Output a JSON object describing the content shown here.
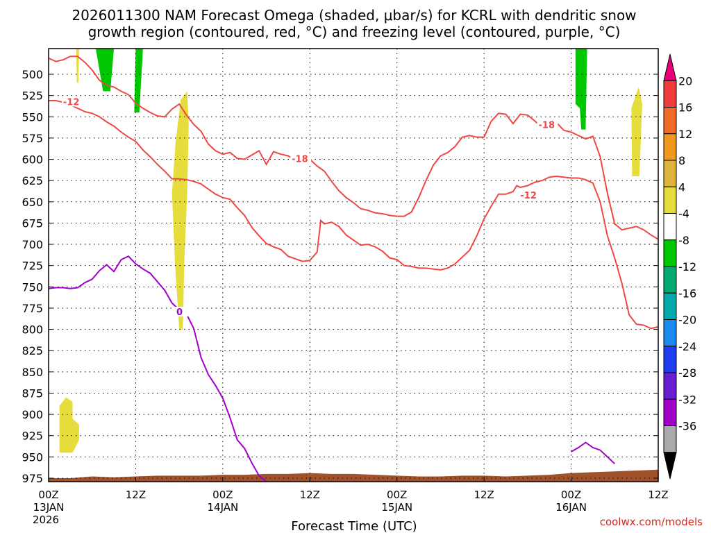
{
  "title": {
    "line1": "2026011300 NAM Forecast Omega (shaded, μbar/s) for KCRL with dendritic snow",
    "line2": "growth region (contoured, red, °C) and freezing level (contoured, purple, °C)"
  },
  "credit": "coolwx.com/models",
  "chart_data": {
    "type": "contour",
    "title": "2026011300 NAM Forecast Omega (shaded, μbar/s) for KCRL with dendritic snow growth region (contoured, red, °C) and freezing level (contoured, purple, °C)",
    "xlabel": "Forecast Time (UTC)",
    "ylabel": "",
    "x_range_hours": [
      0,
      84
    ],
    "y_range_mb": [
      475,
      990
    ],
    "y_ticks": [
      500,
      525,
      550,
      575,
      600,
      625,
      650,
      675,
      700,
      725,
      750,
      775,
      800,
      825,
      850,
      875,
      900,
      925,
      950,
      975
    ],
    "x_ticks": [
      {
        "h": 0,
        "label": "00Z",
        "sub": "13JAN",
        "sub2": "2026"
      },
      {
        "h": 12,
        "label": "12Z",
        "sub": "",
        "sub2": ""
      },
      {
        "h": 24,
        "label": "00Z",
        "sub": "14JAN",
        "sub2": ""
      },
      {
        "h": 36,
        "label": "12Z",
        "sub": "",
        "sub2": ""
      },
      {
        "h": 48,
        "label": "00Z",
        "sub": "15JAN",
        "sub2": ""
      },
      {
        "h": 60,
        "label": "12Z",
        "sub": "",
        "sub2": ""
      },
      {
        "h": 72,
        "label": "00Z",
        "sub": "16JAN",
        "sub2": ""
      },
      {
        "h": 84,
        "label": "12Z",
        "sub": "",
        "sub2": ""
      }
    ],
    "colorbar": {
      "labels": [
        "20",
        "16",
        "12",
        "8",
        "4",
        "-4",
        "-8",
        "-12",
        "-16",
        "-20",
        "-24",
        "-28",
        "-32",
        "-36"
      ],
      "colors": [
        "#e8007a",
        "#f03c3c",
        "#f06a28",
        "#f0981e",
        "#e0b43c",
        "#e6dc3c",
        "#ffffff",
        "#00c800",
        "#00aa70",
        "#00aaaa",
        "#1a8cf0",
        "#1e3cf0",
        "#6a1ed2",
        "#a000c8",
        "#aaaaaa",
        "#000000"
      ]
    },
    "contours": [
      {
        "label": "-12",
        "color": "#f04646",
        "points": [
          [
            0,
            531
          ],
          [
            1,
            531
          ],
          [
            2,
            533
          ],
          [
            3,
            536
          ],
          [
            4,
            540
          ],
          [
            5,
            544
          ],
          [
            6,
            546
          ],
          [
            7,
            550
          ],
          [
            8,
            556
          ],
          [
            9,
            561
          ],
          [
            10,
            568
          ],
          [
            11,
            574
          ],
          [
            12,
            579
          ],
          [
            13,
            589
          ],
          [
            14,
            597
          ],
          [
            15,
            606
          ],
          [
            16,
            614
          ],
          [
            17,
            623
          ],
          [
            18,
            623
          ],
          [
            19,
            624
          ],
          [
            20,
            626
          ],
          [
            21,
            629
          ],
          [
            22,
            635
          ],
          [
            23,
            641
          ],
          [
            24,
            645
          ],
          [
            25,
            647
          ],
          [
            26,
            657
          ],
          [
            27,
            666
          ],
          [
            28,
            680
          ],
          [
            29,
            690
          ],
          [
            30,
            699
          ],
          [
            31,
            703
          ],
          [
            32,
            706
          ],
          [
            33,
            714
          ],
          [
            34,
            717
          ],
          [
            35,
            720
          ],
          [
            36,
            719
          ],
          [
            37,
            709
          ],
          [
            37.5,
            672
          ],
          [
            38,
            676
          ],
          [
            39,
            674
          ],
          [
            40,
            679
          ],
          [
            41,
            689
          ],
          [
            42,
            695
          ],
          [
            43,
            701
          ],
          [
            44,
            700
          ],
          [
            45,
            703
          ],
          [
            46,
            708
          ],
          [
            47,
            716
          ],
          [
            48,
            718
          ],
          [
            49,
            725
          ],
          [
            50,
            726
          ],
          [
            51,
            728
          ],
          [
            52,
            728
          ],
          [
            53,
            729
          ],
          [
            54,
            730
          ],
          [
            55,
            728
          ],
          [
            56,
            723
          ],
          [
            57,
            715
          ],
          [
            58,
            707
          ],
          [
            59,
            690
          ],
          [
            60,
            670
          ],
          [
            61,
            655
          ],
          [
            62,
            641
          ],
          [
            63,
            641
          ],
          [
            64,
            638
          ],
          [
            64.5,
            631
          ],
          [
            65,
            633
          ],
          [
            66,
            631
          ],
          [
            67,
            627
          ],
          [
            68,
            625
          ],
          [
            69,
            621
          ],
          [
            70,
            620
          ],
          [
            71,
            621
          ],
          [
            72,
            622
          ],
          [
            73,
            622
          ],
          [
            74,
            624
          ],
          [
            75,
            628
          ],
          [
            76,
            650
          ],
          [
            77,
            690
          ],
          [
            78,
            716
          ],
          [
            79,
            746
          ],
          [
            80,
            783
          ],
          [
            81,
            794
          ],
          [
            82,
            795
          ],
          [
            83,
            799
          ],
          [
            84,
            797
          ]
        ]
      },
      {
        "label": "-18",
        "color": "#f04646",
        "points": [
          [
            0,
            481
          ],
          [
            1,
            485
          ],
          [
            2,
            483
          ],
          [
            3,
            479
          ],
          [
            4,
            479
          ],
          [
            5,
            486
          ],
          [
            6,
            495
          ],
          [
            7,
            507
          ],
          [
            8,
            513
          ],
          [
            9,
            515
          ],
          [
            10,
            520
          ],
          [
            11,
            524
          ],
          [
            12,
            534
          ],
          [
            13,
            540
          ],
          [
            14,
            545
          ],
          [
            15,
            549
          ],
          [
            16,
            550
          ],
          [
            17,
            541
          ],
          [
            18,
            535
          ],
          [
            19,
            548
          ],
          [
            20,
            559
          ],
          [
            21,
            567
          ],
          [
            22,
            582
          ],
          [
            23,
            590
          ],
          [
            24,
            594
          ],
          [
            25,
            592
          ],
          [
            26,
            599
          ],
          [
            27,
            600
          ],
          [
            28,
            595
          ],
          [
            29,
            590
          ],
          [
            30,
            606
          ],
          [
            31,
            591
          ],
          [
            32,
            594
          ],
          [
            33,
            596
          ],
          [
            34,
            601
          ],
          [
            35,
            601
          ],
          [
            36,
            600
          ],
          [
            37,
            608
          ],
          [
            38,
            614
          ],
          [
            39,
            626
          ],
          [
            40,
            637
          ],
          [
            41,
            645
          ],
          [
            42,
            651
          ],
          [
            43,
            658
          ],
          [
            44,
            660
          ],
          [
            45,
            663
          ],
          [
            46,
            664
          ],
          [
            47,
            666
          ],
          [
            48,
            667
          ],
          [
            49,
            667
          ],
          [
            50,
            662
          ],
          [
            51,
            645
          ],
          [
            52,
            625
          ],
          [
            53,
            607
          ],
          [
            54,
            596
          ],
          [
            55,
            592
          ],
          [
            56,
            585
          ],
          [
            57,
            574
          ],
          [
            58,
            572
          ],
          [
            59,
            574
          ],
          [
            60,
            574
          ],
          [
            61,
            555
          ],
          [
            62,
            546
          ],
          [
            63,
            547
          ],
          [
            64,
            558
          ],
          [
            65,
            547
          ],
          [
            66,
            548
          ],
          [
            67,
            555
          ],
          [
            68,
            563
          ],
          [
            69,
            564
          ],
          [
            70,
            557
          ],
          [
            71,
            566
          ],
          [
            72,
            568
          ],
          [
            73,
            572
          ],
          [
            74,
            576
          ],
          [
            75,
            573
          ],
          [
            76,
            597
          ],
          [
            77,
            640
          ],
          [
            78,
            676
          ],
          [
            79,
            683
          ],
          [
            80,
            681
          ],
          [
            81,
            679
          ],
          [
            82,
            683
          ],
          [
            83,
            689
          ],
          [
            84,
            694
          ]
        ]
      },
      {
        "label": "0",
        "color": "#a000c8",
        "points": [
          [
            0,
            752
          ],
          [
            1,
            751
          ],
          [
            2,
            751
          ],
          [
            3,
            752
          ],
          [
            4,
            751
          ],
          [
            5,
            745
          ],
          [
            6,
            741
          ],
          [
            7,
            731
          ],
          [
            8,
            724
          ],
          [
            9,
            732
          ],
          [
            10,
            718
          ],
          [
            11,
            714
          ],
          [
            12,
            723
          ],
          [
            13,
            729
          ],
          [
            14,
            734
          ],
          [
            15,
            744
          ],
          [
            16,
            754
          ],
          [
            17,
            769
          ],
          [
            18,
            777
          ],
          [
            19,
            782
          ],
          [
            20,
            799
          ],
          [
            21,
            833
          ],
          [
            22,
            853
          ],
          [
            23,
            866
          ],
          [
            24,
            881
          ],
          [
            25,
            904
          ],
          [
            26,
            930
          ],
          [
            27,
            940
          ],
          [
            28,
            957
          ],
          [
            29,
            972
          ],
          [
            30,
            989
          ]
        ]
      },
      {
        "label": "",
        "color": "#a000c8",
        "points": [
          [
            72,
            944
          ],
          [
            73,
            939
          ],
          [
            74,
            933
          ],
          [
            75,
            939
          ],
          [
            76,
            942
          ],
          [
            77,
            950
          ],
          [
            78,
            958
          ]
        ]
      }
    ],
    "shaded_regions": [
      {
        "value": -4,
        "color": "#00c800",
        "points": [
          [
            6.5,
            470
          ],
          [
            9,
            470
          ],
          [
            8.5,
            520
          ],
          [
            7.5,
            520
          ]
        ]
      },
      {
        "value": -4,
        "color": "#00c800",
        "points": [
          [
            12,
            470
          ],
          [
            13,
            470
          ],
          [
            12.5,
            545
          ],
          [
            11.8,
            545
          ]
        ]
      },
      {
        "value": -4,
        "color": "#00c800",
        "points": [
          [
            72.6,
            470
          ],
          [
            74.2,
            470
          ],
          [
            74.0,
            565
          ],
          [
            73.4,
            565
          ],
          [
            73.2,
            540
          ],
          [
            72.6,
            535
          ]
        ]
      },
      {
        "value": 4,
        "color": "#e6dc3c",
        "points": [
          [
            3.8,
            470
          ],
          [
            4.2,
            470
          ],
          [
            4.1,
            510
          ],
          [
            3.9,
            510
          ]
        ]
      },
      {
        "value": 4,
        "color": "#e6dc3c",
        "points": [
          [
            18.2,
            530
          ],
          [
            19.1,
            520
          ],
          [
            19.3,
            560
          ],
          [
            19.1,
            640
          ],
          [
            18.7,
            720
          ],
          [
            18.5,
            800
          ],
          [
            18.0,
            800
          ],
          [
            17.4,
            720
          ],
          [
            17.0,
            640
          ],
          [
            17.5,
            580
          ]
        ]
      },
      {
        "value": 4,
        "color": "#e6dc3c",
        "points": [
          [
            80.3,
            540
          ],
          [
            81.3,
            515
          ],
          [
            81.8,
            535
          ],
          [
            81.4,
            620
          ],
          [
            80.4,
            620
          ]
        ]
      },
      {
        "value": 4,
        "color": "#e6dc3c",
        "points": [
          [
            1.5,
            890
          ],
          [
            2.4,
            880
          ],
          [
            3.3,
            885
          ],
          [
            3.3,
            905
          ],
          [
            4.2,
            912
          ],
          [
            4.2,
            930
          ],
          [
            3.3,
            945
          ],
          [
            1.5,
            945
          ]
        ]
      }
    ],
    "terrain_mb": [
      975,
      975,
      973,
      974,
      973,
      972,
      972,
      972,
      971,
      971,
      970,
      970,
      969,
      970,
      970,
      971,
      972,
      973,
      973,
      972,
      972,
      973,
      972,
      971,
      969,
      968,
      967,
      966,
      965
    ]
  }
}
